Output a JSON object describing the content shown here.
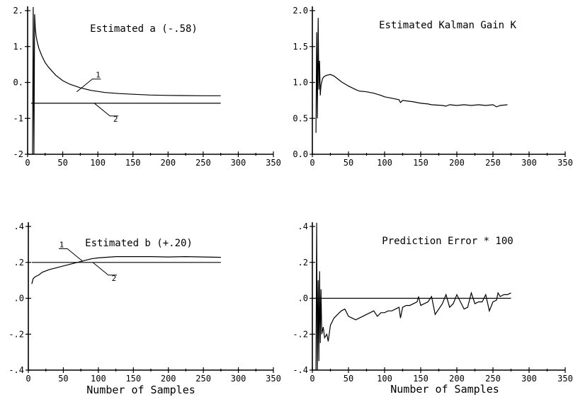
{
  "chart_data": [
    {
      "id": "a",
      "type": "line",
      "title": "Estimated a  (-.58)",
      "xlabel": "",
      "ylabel": "",
      "xlim": [
        0,
        350
      ],
      "ylim": [
        -2,
        2
      ],
      "xticks": [
        0,
        50,
        100,
        150,
        200,
        250,
        300,
        350
      ],
      "yticks": [
        -2,
        -1,
        0,
        1,
        2
      ],
      "xtick_labels": [
        "0",
        "50",
        "100",
        "150",
        "200",
        "250",
        "300",
        "350"
      ],
      "ytick_labels": [
        "-2",
        "-1",
        "0.",
        "1.",
        "2."
      ],
      "grid": false,
      "series": [
        {
          "name": "1",
          "x": [
            7,
            8,
            9,
            10,
            11,
            12,
            14,
            16,
            20,
            25,
            30,
            40,
            50,
            60,
            75,
            90,
            110,
            130,
            150,
            175,
            200,
            250,
            275
          ],
          "y": [
            -2.0,
            2.1,
            -2.0,
            1.9,
            1.5,
            1.3,
            1.1,
            0.95,
            0.75,
            0.55,
            0.42,
            0.2,
            0.05,
            -0.05,
            -0.15,
            -0.22,
            -0.28,
            -0.31,
            -0.33,
            -0.35,
            -0.36,
            -0.37,
            -0.37
          ]
        },
        {
          "name": "2",
          "x": [
            5,
            275
          ],
          "y": [
            -0.58,
            -0.58
          ]
        }
      ],
      "annotations": [
        {
          "text": "1",
          "series": "1",
          "x": 70,
          "y": -0.26
        },
        {
          "text": "2",
          "series": "2",
          "x": 95,
          "y": -0.58
        }
      ]
    },
    {
      "id": "k",
      "type": "line",
      "title": "Estimated Kalman Gain K",
      "xlabel": "",
      "ylabel": "",
      "xlim": [
        0,
        350
      ],
      "ylim": [
        0,
        2
      ],
      "xticks": [
        0,
        50,
        100,
        150,
        200,
        250,
        300,
        350
      ],
      "yticks": [
        0,
        0.5,
        1.0,
        1.5,
        2.0
      ],
      "xtick_labels": [
        "0",
        "50",
        "100",
        "150",
        "200",
        "250",
        "300",
        "350"
      ],
      "ytick_labels": [
        "0.0",
        "0.5",
        "1.0",
        "1.5",
        "2.0"
      ],
      "grid": false,
      "series": [
        {
          "name": "",
          "x": [
            5,
            6,
            7,
            8,
            9,
            10,
            11,
            12,
            14,
            16,
            20,
            25,
            30,
            35,
            40,
            50,
            60,
            65,
            75,
            85,
            95,
            100,
            110,
            120,
            122,
            125,
            140,
            150,
            160,
            165,
            180,
            185,
            190,
            200,
            210,
            220,
            230,
            240,
            250,
            255,
            260,
            270
          ],
          "y": [
            0.3,
            1.7,
            0.5,
            1.9,
            0.9,
            1.3,
            0.82,
            0.96,
            1.05,
            1.08,
            1.1,
            1.11,
            1.09,
            1.05,
            1.01,
            0.95,
            0.9,
            0.88,
            0.87,
            0.85,
            0.82,
            0.8,
            0.78,
            0.76,
            0.72,
            0.75,
            0.73,
            0.71,
            0.7,
            0.69,
            0.68,
            0.67,
            0.69,
            0.68,
            0.69,
            0.68,
            0.69,
            0.68,
            0.69,
            0.66,
            0.68,
            0.69
          ]
        }
      ],
      "annotations": []
    },
    {
      "id": "b",
      "type": "line",
      "title": "Estimated b  (+.20)",
      "xlabel": "Number of Samples",
      "ylabel": "",
      "xlim": [
        0,
        350
      ],
      "ylim": [
        -0.4,
        0.4
      ],
      "xticks": [
        0,
        50,
        100,
        150,
        200,
        250,
        300,
        350
      ],
      "yticks": [
        -0.4,
        -0.2,
        0,
        0.2,
        0.4
      ],
      "xtick_labels": [
        "0",
        "50",
        "100",
        "150",
        "200",
        "250",
        "300",
        "350"
      ],
      "ytick_labels": [
        "-.4",
        "-.2",
        ".0",
        ".2",
        ".4"
      ],
      "grid": false,
      "series": [
        {
          "name": "1",
          "x": [
            5,
            7,
            10,
            15,
            20,
            30,
            40,
            50,
            60,
            70,
            80,
            90,
            100,
            125,
            150,
            175,
            200,
            225,
            250,
            275
          ],
          "y": [
            0.08,
            0.11,
            0.12,
            0.13,
            0.145,
            0.16,
            0.17,
            0.18,
            0.19,
            0.2,
            0.21,
            0.22,
            0.225,
            0.232,
            0.232,
            0.232,
            0.23,
            0.232,
            0.23,
            0.228
          ]
        },
        {
          "name": "2",
          "x": [
            5,
            275
          ],
          "y": [
            0.2,
            0.2
          ]
        }
      ],
      "annotations": [
        {
          "text": "1",
          "series": "1",
          "x": 78,
          "y": 0.205
        },
        {
          "text": "2",
          "series": "2",
          "x": 92,
          "y": 0.2
        }
      ]
    },
    {
      "id": "e",
      "type": "line",
      "title": "Prediction Error * 100",
      "xlabel": "Number of Samples",
      "ylabel": "",
      "xlim": [
        0,
        350
      ],
      "ylim": [
        -0.4,
        0.4
      ],
      "xticks": [
        0,
        50,
        100,
        150,
        200,
        250,
        300,
        350
      ],
      "yticks": [
        -0.4,
        -0.2,
        0,
        0.2,
        0.4
      ],
      "xtick_labels": [
        "0",
        "50",
        "100",
        "150",
        "200",
        "250",
        "300",
        "350"
      ],
      "ytick_labels": [
        "-.4",
        "-.2",
        ".0",
        ".2",
        ".4"
      ],
      "grid": false,
      "series": [
        {
          "name": "",
          "x": [
            5,
            6,
            7,
            8,
            9,
            10,
            11,
            12,
            13,
            15,
            17,
            20,
            22,
            25,
            30,
            35,
            40,
            45,
            50,
            60,
            70,
            75,
            80,
            85,
            90,
            95,
            100,
            105,
            110,
            115,
            120,
            122,
            125,
            130,
            135,
            140,
            145,
            147,
            150,
            155,
            160,
            165,
            170,
            180,
            185,
            190,
            195,
            200,
            210,
            215,
            220,
            225,
            230,
            235,
            240,
            245,
            250,
            255,
            257,
            260,
            265,
            270,
            275
          ],
          "y": [
            -0.4,
            0.42,
            -0.4,
            0.1,
            -0.35,
            0.15,
            -0.25,
            0.05,
            -0.2,
            -0.16,
            -0.22,
            -0.2,
            -0.24,
            -0.15,
            -0.11,
            -0.09,
            -0.07,
            -0.06,
            -0.1,
            -0.12,
            -0.1,
            -0.09,
            -0.08,
            -0.07,
            -0.1,
            -0.08,
            -0.08,
            -0.07,
            -0.07,
            -0.06,
            -0.05,
            -0.11,
            -0.05,
            -0.04,
            -0.04,
            -0.03,
            -0.02,
            0.01,
            -0.04,
            -0.03,
            -0.02,
            0.01,
            -0.09,
            -0.03,
            0.02,
            -0.05,
            -0.03,
            0.02,
            -0.06,
            -0.05,
            0.03,
            -0.03,
            -0.02,
            -0.02,
            0.02,
            -0.07,
            -0.02,
            -0.01,
            0.03,
            0.01,
            0.02,
            0.02,
            0.03
          ]
        },
        {
          "name": "",
          "x": [
            0,
            275
          ],
          "y": [
            0.0,
            0.0
          ]
        }
      ],
      "annotations": []
    }
  ]
}
